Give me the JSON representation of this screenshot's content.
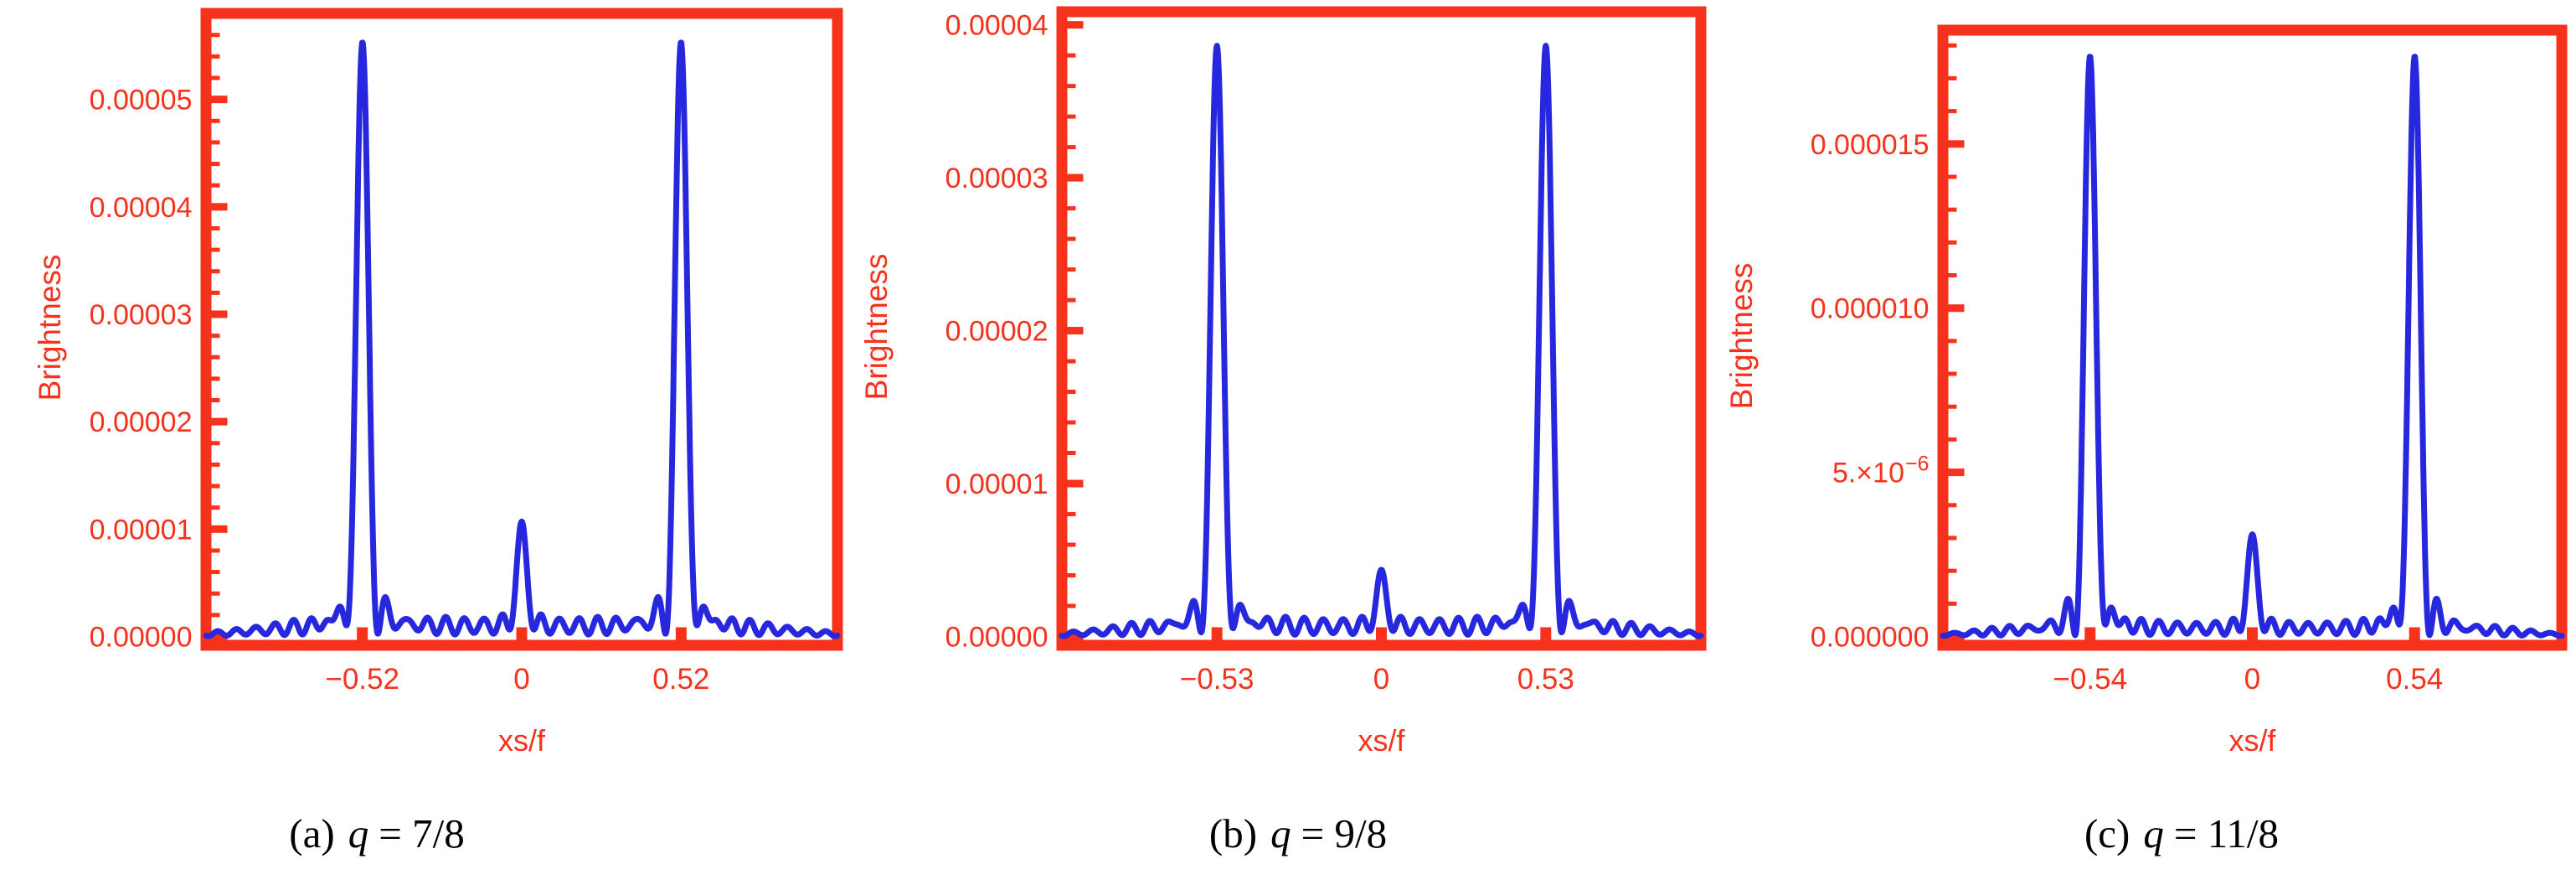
{
  "figure": {
    "background": "#ffffff",
    "frame_color": "#F7321C",
    "curve_color": "#2727DE",
    "caption_color": "#000000",
    "ylabel": "Brightness",
    "xlabel": "xs/f"
  },
  "chart_data": [
    {
      "type": "line",
      "panel": "a",
      "caption": {
        "prefix": "(a)",
        "var": "q",
        "eq": "= 7/8"
      },
      "xlabel": "xs/f",
      "ylabel": "Brightness",
      "xlim": [
        -1.03,
        1.03
      ],
      "ylim": [
        0,
        5.75e-05
      ],
      "grid": false,
      "x_ticks": [
        {
          "value": -0.52,
          "label": "−0.52"
        },
        {
          "value": 0,
          "label": "0"
        },
        {
          "value": 0.52,
          "label": "0.52"
        }
      ],
      "y_ticks": [
        {
          "value": 0,
          "label": "0.00000"
        },
        {
          "value": 1e-05,
          "label": "0.00001"
        },
        {
          "value": 2e-05,
          "label": "0.00002"
        },
        {
          "value": 3e-05,
          "label": "0.00003"
        },
        {
          "value": 4e-05,
          "label": "0.00004"
        },
        {
          "value": 5e-05,
          "label": "0.00005"
        }
      ],
      "y_minor_step": 2e-06,
      "curve": {
        "peak_positions": [
          -0.52,
          0.52
        ],
        "peak_height": 5.5e-05,
        "central_peak_position": 0,
        "central_peak_height": 9e-06,
        "peak_width": 0.05,
        "ripple_amplitude": 1.6e-06,
        "ripple_period": 0.062
      }
    },
    {
      "type": "line",
      "panel": "b",
      "caption": {
        "prefix": "(b)",
        "var": "q",
        "eq": "= 9/8"
      },
      "xlabel": "xs/f",
      "ylabel": "Brightness",
      "xlim": [
        -1.03,
        1.03
      ],
      "ylim": [
        0,
        4.05e-05
      ],
      "grid": false,
      "x_ticks": [
        {
          "value": -0.53,
          "label": "−0.53"
        },
        {
          "value": 0,
          "label": "0"
        },
        {
          "value": 0.53,
          "label": "0.53"
        }
      ],
      "y_ticks": [
        {
          "value": 0,
          "label": "0.00000"
        },
        {
          "value": 1e-05,
          "label": "0.00001"
        },
        {
          "value": 2e-05,
          "label": "0.00002"
        },
        {
          "value": 3e-05,
          "label": "0.00003"
        },
        {
          "value": 4e-05,
          "label": "0.00004"
        }
      ],
      "y_minor_step": 2e-06,
      "curve": {
        "peak_positions": [
          -0.53,
          0.53
        ],
        "peak_height": 3.85e-05,
        "central_peak_position": 0,
        "central_peak_height": 3.2e-06,
        "peak_width": 0.05,
        "ripple_amplitude": 1.1e-06,
        "ripple_period": 0.062
      }
    },
    {
      "type": "line",
      "panel": "c",
      "caption": {
        "prefix": "(c)",
        "var": "q",
        "eq": "= 11/8"
      },
      "xlabel": "xs/f",
      "ylabel": "Brightness",
      "xlim": [
        -1.03,
        1.03
      ],
      "ylim": [
        0,
        1.83e-05
      ],
      "grid": false,
      "x_ticks": [
        {
          "value": -0.54,
          "label": "−0.54"
        },
        {
          "value": 0,
          "label": "0"
        },
        {
          "value": 0.54,
          "label": "0.54"
        }
      ],
      "y_ticks": [
        {
          "value": 0,
          "label": "0.000000"
        },
        {
          "value": 5e-06,
          "label": "5.×10",
          "sup": "−6"
        },
        {
          "value": 1e-05,
          "label": "0.000010"
        },
        {
          "value": 1.5e-05,
          "label": "0.000015"
        }
      ],
      "y_minor_step": 1e-06,
      "curve": {
        "peak_positions": [
          -0.54,
          0.54
        ],
        "peak_height": 1.75e-05,
        "central_peak_position": 0,
        "central_peak_height": 2.7e-06,
        "peak_width": 0.05,
        "ripple_amplitude": 4e-07,
        "ripple_period": 0.062
      }
    }
  ]
}
